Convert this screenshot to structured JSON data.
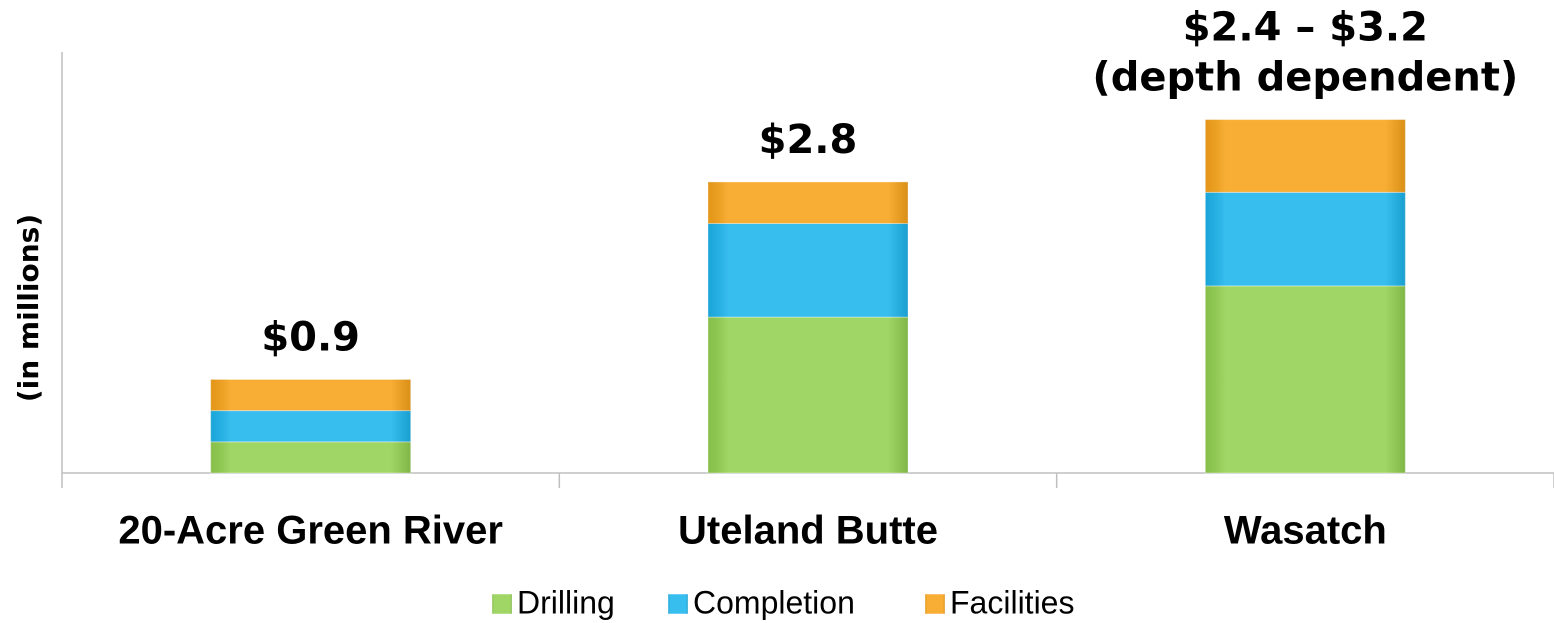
{
  "chart_data": {
    "type": "stacked_bar",
    "y_label": "(in millions)",
    "categories": [
      "20-Acre Green River",
      "Uteland Butte",
      "Wasatch"
    ],
    "series": [
      {
        "name": "Drilling",
        "color": "#92d050",
        "values": [
          0.3,
          1.5,
          1.8
        ]
      },
      {
        "name": "Completion",
        "color": "#1cb4ec",
        "values": [
          0.3,
          0.9,
          0.9
        ]
      },
      {
        "name": "Facilities",
        "color": "#f7a319",
        "values": [
          0.3,
          0.4,
          0.7
        ]
      }
    ],
    "bar_labels": [
      [
        "$0.9"
      ],
      [
        "$2.8"
      ],
      [
        "$2.4 – $3.2",
        "(depth dependent)"
      ]
    ],
    "ylim": [
      0,
      4.05
    ],
    "legend": "bottom"
  }
}
